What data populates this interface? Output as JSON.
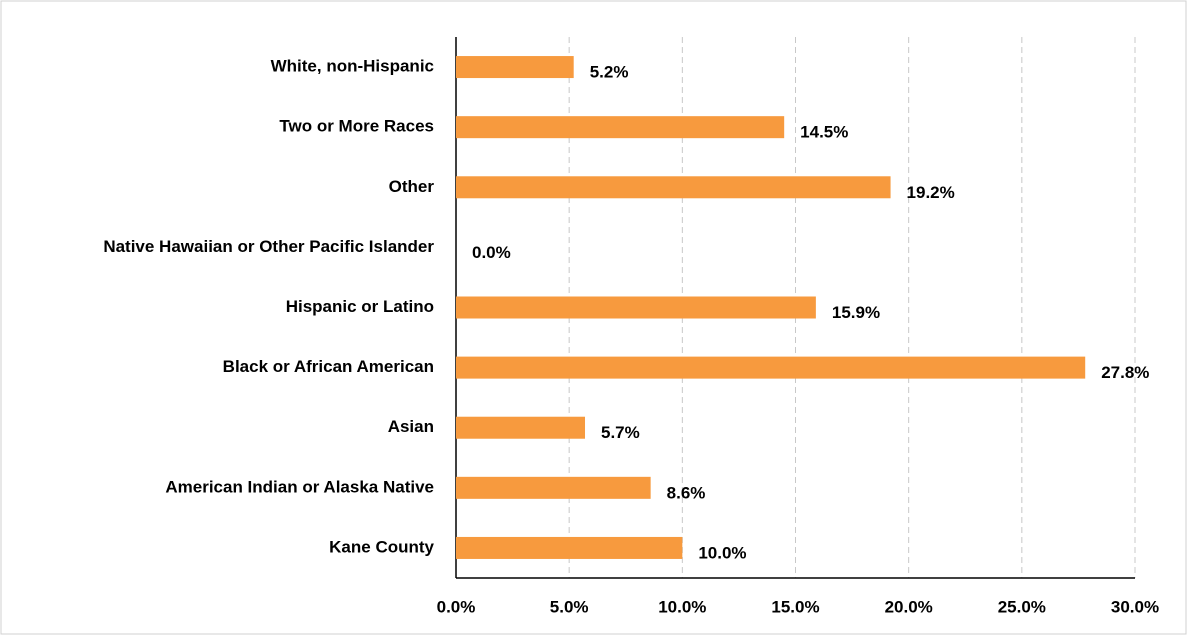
{
  "chart_data": {
    "type": "hbar",
    "categories": [
      "White, non-Hispanic",
      "Two or More Races",
      "Other",
      "Native Hawaiian or Other Pacific Islander",
      "Hispanic or Latino",
      "Black or African American",
      "Asian",
      "American Indian or Alaska Native",
      "Kane County"
    ],
    "values": [
      5.2,
      14.5,
      19.2,
      0.0,
      15.9,
      27.8,
      5.7,
      8.6,
      10.0
    ],
    "value_labels": [
      "5.2%",
      "14.5%",
      "19.2%",
      "0.0%",
      "15.9%",
      "27.8%",
      "5.7%",
      "8.6%",
      "10.0%"
    ],
    "color": "#f79a3e",
    "xlim": [
      0,
      30
    ],
    "xticks": [
      {
        "value": 0,
        "label": "0.0%"
      },
      {
        "value": 5,
        "label": "5.0%"
      },
      {
        "value": 10,
        "label": "10.0%"
      },
      {
        "value": 15,
        "label": "15.0%"
      },
      {
        "value": 20,
        "label": "20.0%"
      },
      {
        "value": 25,
        "label": "25.0%"
      },
      {
        "value": 30,
        "label": "30.0%"
      }
    ],
    "grid": true
  }
}
